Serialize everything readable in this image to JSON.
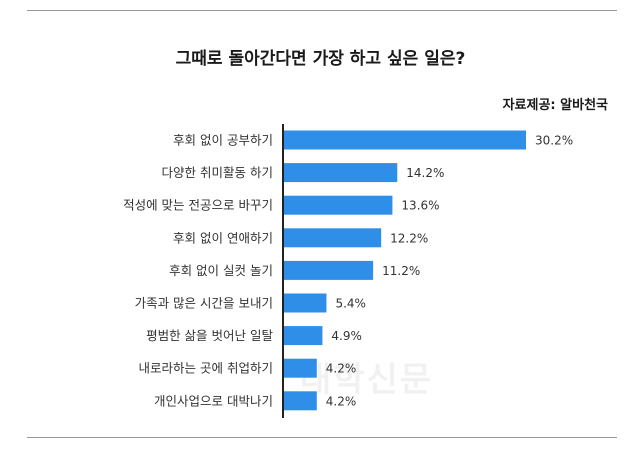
{
  "title": "그때로 돌아간다면 가장 하고 싶은 일은?",
  "source": "자료제공: 알바천국",
  "watermark": "대학신문",
  "chart_data": {
    "type": "bar",
    "orientation": "horizontal",
    "categories": [
      "후회 없이 공부하기",
      "다양한 취미활동 하기",
      "적성에 맞는 전공으로 바꾸기",
      "후회 없이 연애하기",
      "후회 없이 실컷 놀기",
      "가족과 많은 시간을 보내기",
      "평범한 삶을 벗어난 일탈",
      "내로라하는 곳에 취업하기",
      "개인사업으로 대박나기"
    ],
    "values": [
      30.2,
      14.2,
      13.6,
      12.2,
      11.2,
      5.4,
      4.9,
      4.2,
      4.2
    ],
    "value_labels": [
      "30.2%",
      "14.2%",
      "13.6%",
      "12.2%",
      "11.2%",
      "5.4%",
      "4.9%",
      "4.2%",
      "4.2%"
    ],
    "title": "그때로 돌아간다면 가장 하고 싶은 일은?",
    "xlim": [
      0,
      30.2
    ],
    "bar_color": "#2f8fe8",
    "axis_color": "#222222",
    "grid": false,
    "legend": "none"
  }
}
